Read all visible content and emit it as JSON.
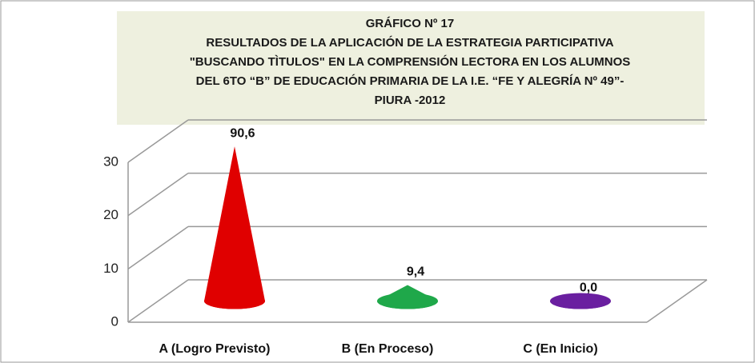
{
  "chart_data": {
    "type": "cone3d",
    "title": [
      "GRÁFICO Nº 17",
      "RESULTADOS DE LA APLICACIÓN DE LA ESTRATEGIA PARTICIPATIVA",
      "\"BUSCANDO TÌTULOS\" EN LA COMPRENSIÓN LECTORA EN LOS ALUMNOS",
      "DEL 6TO “B” DE EDUCACIÓN PRIMARIA DE  LA I.E. “FE Y ALEGRÍA Nº 49”-",
      "PIURA -2012"
    ],
    "categories": [
      "A (Logro Previsto)",
      "B (En Proceso)",
      "C (En Inicio)"
    ],
    "values": [
      29,
      3,
      0
    ],
    "data_labels": [
      "90,6",
      "9,4",
      "0,0"
    ],
    "colors": [
      "#e00000",
      "#1fa84a",
      "#6a1fa0"
    ],
    "ylim": [
      0,
      30
    ],
    "yticks": [
      0,
      10,
      20,
      30
    ],
    "grid": true
  }
}
